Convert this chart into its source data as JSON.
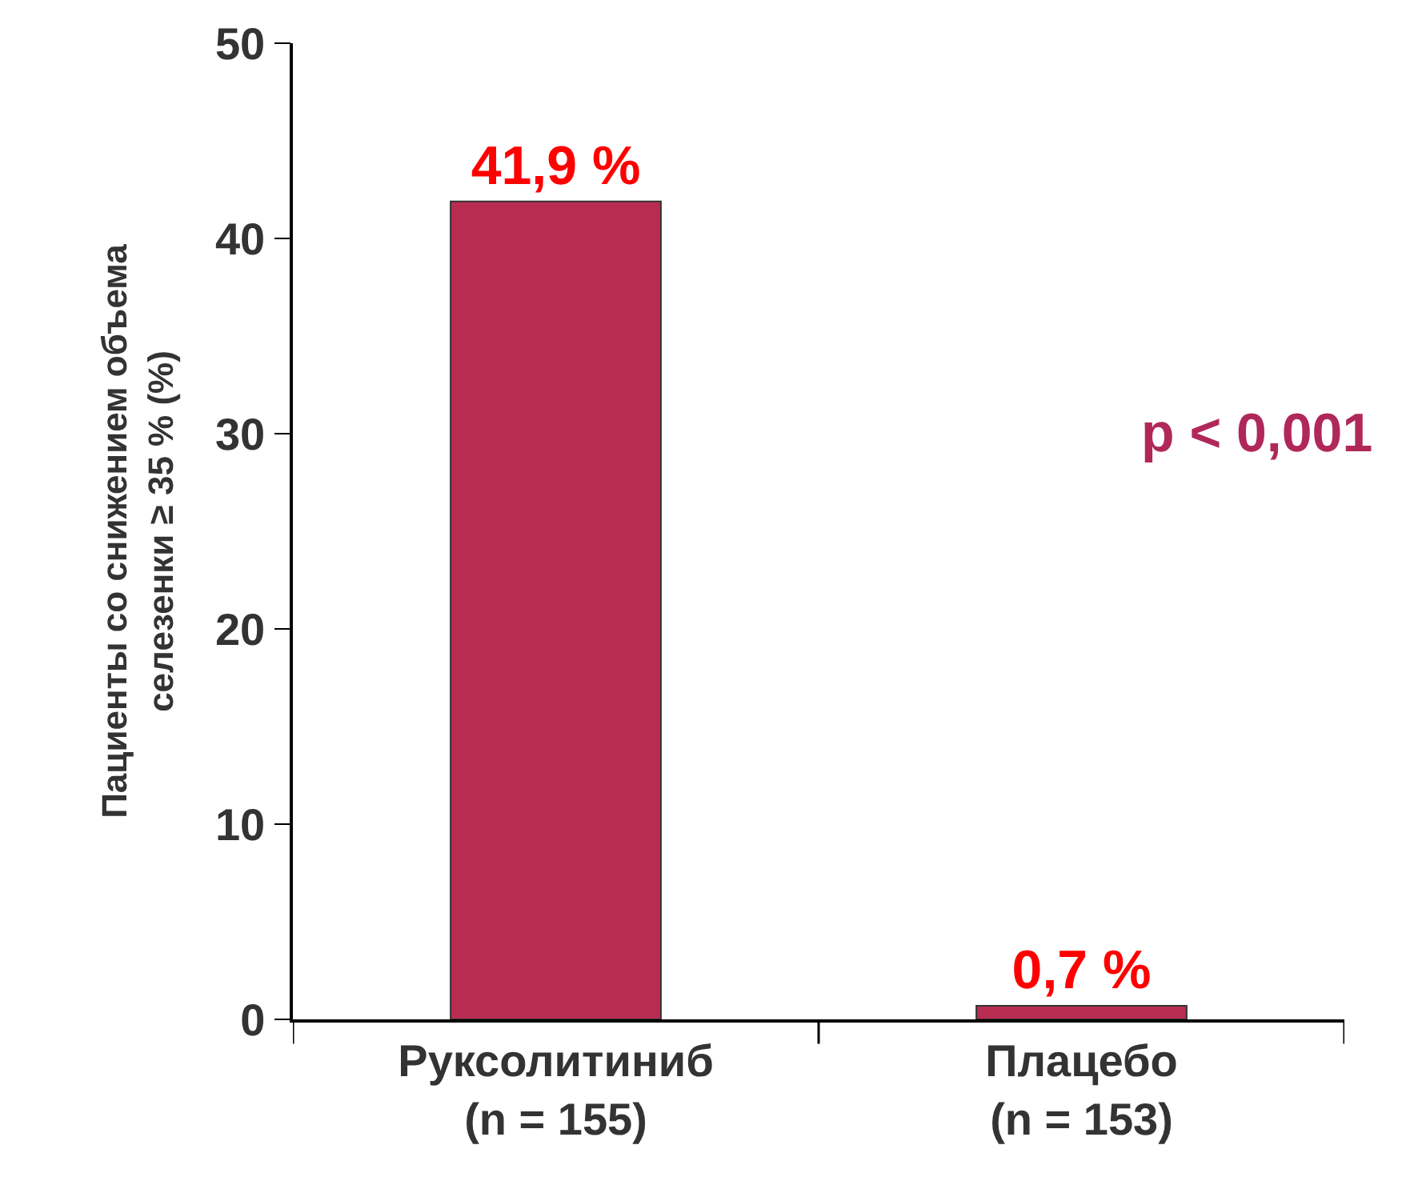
{
  "chart_data": {
    "type": "bar",
    "ylabel": "Пациенты со снижением объема\nселезенки ≥ 35 % (%)",
    "categories": [
      "Руксолитиниб\n(n = 155)",
      "Плацебо\n(n = 153)"
    ],
    "values": [
      41.9,
      0.7
    ],
    "color": "#b82c52",
    "value_labels": [
      "41,9 %",
      "0,7 %"
    ],
    "ylim": [
      0,
      50
    ],
    "yticks": [
      0,
      10,
      20,
      30,
      40,
      50
    ],
    "grid": false,
    "legend": false,
    "annotations": [
      "p < 0,001"
    ]
  }
}
